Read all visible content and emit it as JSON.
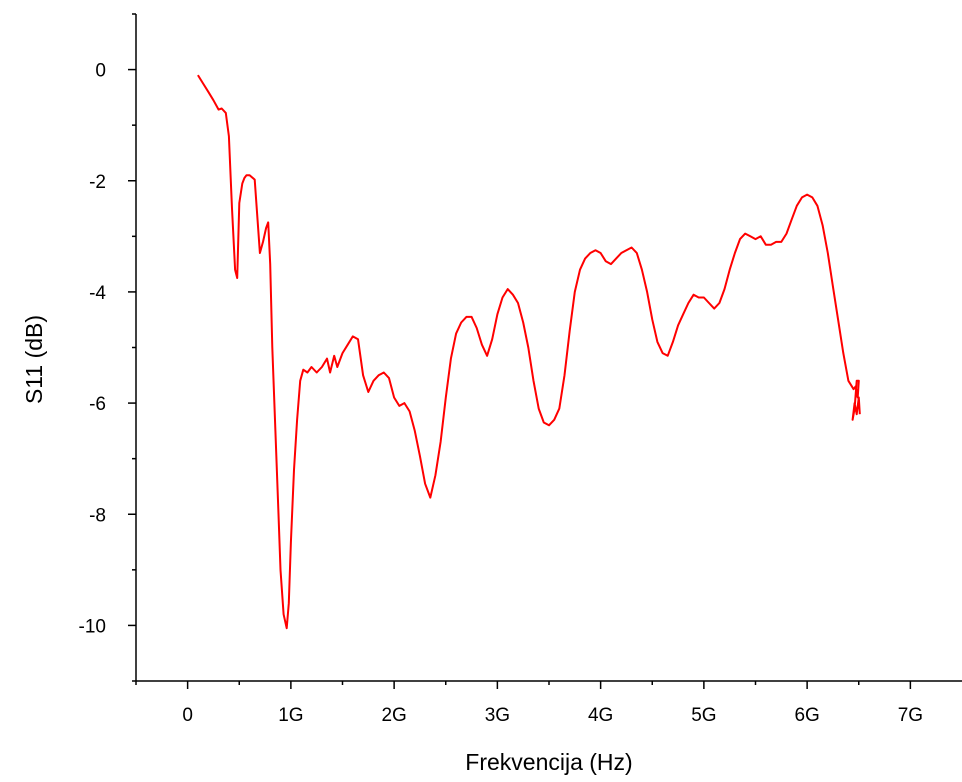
{
  "chart_data": {
    "type": "line",
    "xlabel": "Frekvencija (Hz)",
    "ylabel": "S11 (dB)",
    "xlim": [
      -0.5,
      7.5
    ],
    "ylim": [
      -11,
      1
    ],
    "x_ticks": [
      0,
      1,
      2,
      3,
      4,
      5,
      6,
      7
    ],
    "x_tick_labels": [
      "0",
      "1G",
      "2G",
      "3G",
      "4G",
      "5G",
      "6G",
      "7G"
    ],
    "y_ticks": [
      0,
      -2,
      -4,
      -6,
      -8,
      -10
    ],
    "y_tick_labels": [
      "0",
      "-2",
      "-4",
      "-6",
      "-8",
      "-10"
    ],
    "grid": false,
    "series_color": "#ff0000",
    "series": [
      {
        "x": [
          0.1,
          0.15,
          0.2,
          0.25,
          0.3,
          0.33,
          0.37,
          0.4,
          0.43,
          0.46,
          0.48,
          0.5,
          0.53,
          0.55,
          0.57,
          0.6,
          0.65,
          0.7,
          0.73,
          0.76,
          0.78,
          0.8,
          0.82,
          0.85,
          0.88,
          0.9,
          0.93,
          0.96,
          0.98,
          1.0,
          1.03,
          1.06,
          1.09,
          1.12,
          1.16,
          1.2,
          1.25,
          1.3,
          1.35,
          1.38,
          1.42,
          1.45,
          1.5,
          1.55,
          1.6,
          1.65,
          1.7,
          1.75,
          1.8,
          1.85,
          1.9,
          1.95,
          2.0,
          2.05,
          2.1,
          2.15,
          2.2,
          2.25,
          2.3,
          2.35,
          2.4,
          2.45,
          2.5,
          2.55,
          2.6,
          2.65,
          2.7,
          2.75,
          2.8,
          2.85,
          2.9,
          2.95,
          3.0,
          3.05,
          3.1,
          3.15,
          3.2,
          3.25,
          3.3,
          3.35,
          3.4,
          3.45,
          3.5,
          3.55,
          3.6,
          3.65,
          3.7,
          3.75,
          3.8,
          3.85,
          3.9,
          3.95,
          4.0,
          4.05,
          4.1,
          4.15,
          4.2,
          4.25,
          4.3,
          4.35,
          4.4,
          4.45,
          4.5,
          4.55,
          4.6,
          4.65,
          4.7,
          4.75,
          4.8,
          4.85,
          4.9,
          4.95,
          5.0,
          5.05,
          5.1,
          5.15,
          5.2,
          5.25,
          5.3,
          5.35,
          5.4,
          5.45,
          5.5,
          5.55,
          5.6,
          5.65,
          5.7,
          5.75,
          5.8,
          5.85,
          5.9,
          5.95,
          6.0,
          6.05,
          6.1,
          6.15,
          6.2,
          6.25,
          6.3,
          6.35,
          6.4,
          6.45,
          6.47,
          6.49,
          6.5,
          6.48,
          6.46,
          6.44,
          6.46,
          6.48,
          6.5,
          6.51
        ],
        "y": [
          -0.1,
          -0.25,
          -0.4,
          -0.55,
          -0.72,
          -0.7,
          -0.78,
          -1.2,
          -2.5,
          -3.6,
          -3.75,
          -2.4,
          -2.05,
          -1.95,
          -1.9,
          -1.9,
          -1.98,
          -3.3,
          -3.1,
          -2.85,
          -2.75,
          -3.5,
          -5.0,
          -6.5,
          -8.0,
          -9.0,
          -9.8,
          -10.05,
          -9.6,
          -8.5,
          -7.2,
          -6.3,
          -5.6,
          -5.4,
          -5.45,
          -5.35,
          -5.45,
          -5.35,
          -5.2,
          -5.45,
          -5.15,
          -5.35,
          -5.1,
          -4.95,
          -4.8,
          -4.85,
          -5.5,
          -5.8,
          -5.6,
          -5.5,
          -5.45,
          -5.55,
          -5.9,
          -6.05,
          -6.0,
          -6.15,
          -6.5,
          -6.95,
          -7.45,
          -7.7,
          -7.3,
          -6.7,
          -5.9,
          -5.2,
          -4.75,
          -4.55,
          -4.45,
          -4.45,
          -4.65,
          -4.95,
          -5.15,
          -4.85,
          -4.4,
          -4.1,
          -3.95,
          -4.05,
          -4.2,
          -4.55,
          -5.0,
          -5.6,
          -6.1,
          -6.35,
          -6.4,
          -6.3,
          -6.1,
          -5.5,
          -4.7,
          -4.0,
          -3.6,
          -3.4,
          -3.3,
          -3.25,
          -3.3,
          -3.45,
          -3.5,
          -3.4,
          -3.3,
          -3.25,
          -3.2,
          -3.3,
          -3.6,
          -4.0,
          -4.5,
          -4.9,
          -5.1,
          -5.15,
          -4.9,
          -4.6,
          -4.4,
          -4.2,
          -4.05,
          -4.1,
          -4.1,
          -4.2,
          -4.3,
          -4.2,
          -3.95,
          -3.6,
          -3.3,
          -3.05,
          -2.95,
          -3.0,
          -3.05,
          -3.0,
          -3.15,
          -3.15,
          -3.1,
          -3.1,
          -2.95,
          -2.7,
          -2.45,
          -2.3,
          -2.25,
          -2.3,
          -2.45,
          -2.8,
          -3.3,
          -3.9,
          -4.5,
          -5.1,
          -5.6,
          -5.75,
          -5.7,
          -5.9,
          -5.6,
          -5.6,
          -6.1,
          -6.3,
          -6.0,
          -6.2,
          -5.9,
          -6.2
        ]
      }
    ]
  }
}
